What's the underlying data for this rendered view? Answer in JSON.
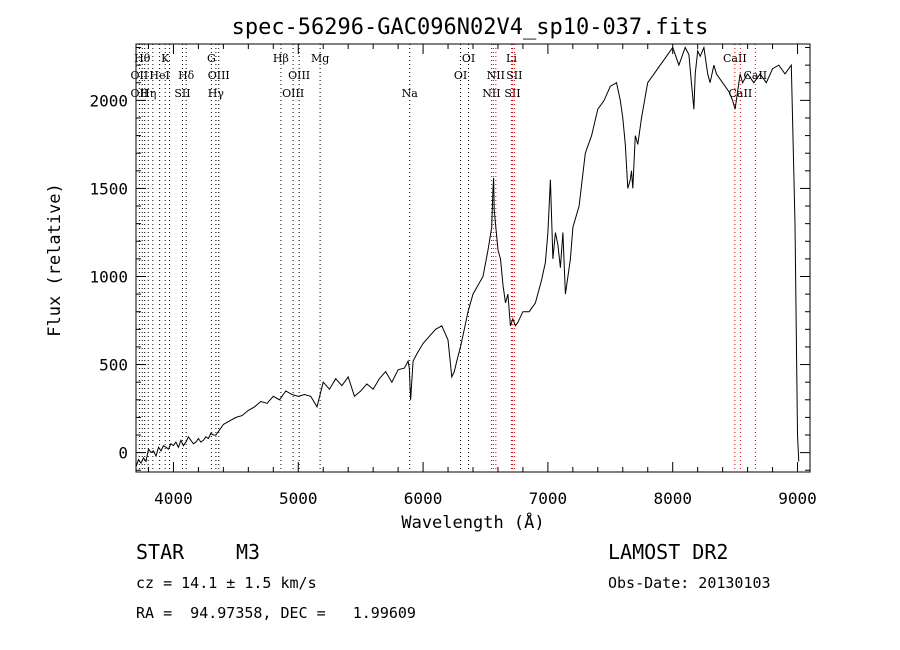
{
  "chart_data": {
    "type": "line",
    "title": "spec-56296-GAC096N02V4_sp10-037.fits",
    "xlabel": "Wavelength (Å)",
    "ylabel": "Flux (relative)",
    "xlim": [
      3700,
      9100
    ],
    "ylim": [
      -110,
      2320
    ],
    "x_ticks": [
      4000,
      5000,
      6000,
      7000,
      8000,
      9000
    ],
    "y_ticks": [
      0,
      500,
      1000,
      1500,
      2000
    ],
    "grid": false,
    "line_color": "#000000",
    "series": [
      {
        "x": [
          3700,
          3720,
          3740,
          3760,
          3780,
          3800,
          3820,
          3840,
          3860,
          3880,
          3900,
          3920,
          3940,
          3960,
          3980,
          4000,
          4020,
          4040,
          4060,
          4080,
          4100,
          4120,
          4140,
          4160,
          4180,
          4200,
          4220,
          4240,
          4260,
          4280,
          4300,
          4320,
          4340,
          4360,
          4380,
          4400,
          4450,
          4500,
          4550,
          4600,
          4650,
          4700,
          4750,
          4800,
          4850,
          4900,
          4950,
          5000,
          5050,
          5100,
          5150,
          5200,
          5250,
          5300,
          5350,
          5400,
          5450,
          5500,
          5550,
          5600,
          5650,
          5700,
          5750,
          5800,
          5850,
          5880,
          5890,
          5900,
          5920,
          5950,
          6000,
          6050,
          6100,
          6150,
          6200,
          6230,
          6250,
          6270,
          6300,
          6330,
          6360,
          6400,
          6440,
          6480,
          6520,
          6550,
          6560,
          6565,
          6570,
          6580,
          6600,
          6620,
          6640,
          6660,
          6680,
          6700,
          6720,
          6740,
          6760,
          6800,
          6850,
          6900,
          6950,
          6980,
          7000,
          7020,
          7040,
          7060,
          7080,
          7100,
          7120,
          7140,
          7160,
          7180,
          7200,
          7250,
          7300,
          7350,
          7400,
          7450,
          7500,
          7550,
          7580,
          7600,
          7620,
          7640,
          7660,
          7670,
          7680,
          7700,
          7720,
          7750,
          7800,
          7850,
          7900,
          7950,
          8000,
          8050,
          8100,
          8130,
          8150,
          8170,
          8180,
          8200,
          8220,
          8250,
          8280,
          8300,
          8330,
          8350,
          8400,
          8450,
          8480,
          8500,
          8520,
          8540,
          8560,
          8600,
          8650,
          8700,
          8750,
          8800,
          8850,
          8900,
          8950,
          8980,
          9000,
          9010
        ],
        "y": [
          -80,
          -40,
          -60,
          -30,
          -50,
          20,
          0,
          10,
          -20,
          30,
          10,
          40,
          30,
          20,
          50,
          40,
          60,
          30,
          70,
          40,
          60,
          90,
          70,
          50,
          60,
          80,
          60,
          70,
          90,
          80,
          110,
          100,
          100,
          120,
          140,
          160,
          180,
          200,
          210,
          240,
          260,
          290,
          280,
          320,
          300,
          350,
          330,
          320,
          330,
          320,
          260,
          400,
          360,
          420,
          380,
          430,
          320,
          350,
          390,
          360,
          420,
          460,
          400,
          470,
          480,
          520,
          480,
          300,
          520,
          560,
          620,
          660,
          700,
          720,
          640,
          430,
          460,
          520,
          600,
          700,
          800,
          900,
          950,
          1000,
          1150,
          1280,
          1500,
          1560,
          1380,
          1300,
          1150,
          1100,
          950,
          850,
          900,
          720,
          760,
          720,
          740,
          800,
          800,
          850,
          980,
          1080,
          1250,
          1550,
          1100,
          1250,
          1180,
          1050,
          1250,
          900,
          1000,
          1100,
          1280,
          1400,
          1700,
          1800,
          1950,
          2000,
          2080,
          2100,
          2000,
          1900,
          1750,
          1500,
          1550,
          1600,
          1500,
          1800,
          1750,
          1900,
          2100,
          2150,
          2200,
          2250,
          2300,
          2200,
          2300,
          2260,
          2100,
          1950,
          2150,
          2280,
          2250,
          2300,
          2150,
          2100,
          2200,
          2150,
          2100,
          2050,
          2000,
          1950,
          2050,
          2150,
          2100,
          2150,
          2100,
          2150,
          2100,
          2180,
          2200,
          2150,
          2200,
          1300,
          100,
          -50
        ]
      }
    ],
    "lines": [
      {
        "x": 3727,
        "color": "#000000",
        "labels": [
          {
            "text": "OII",
            "row": 1
          },
          {
            "text": "OII",
            "row": 2
          }
        ]
      },
      {
        "x": 3750,
        "color": "#000000",
        "labels": [
          {
            "text": "Hθ",
            "row": 0
          }
        ]
      },
      {
        "x": 3770,
        "color": "#000000",
        "labels": []
      },
      {
        "x": 3798,
        "color": "#000000",
        "labels": [
          {
            "text": "Hη",
            "row": 2
          }
        ]
      },
      {
        "x": 3835,
        "color": "#000000",
        "labels": []
      },
      {
        "x": 3889,
        "color": "#000000",
        "labels": [
          {
            "text": "HeI",
            "row": 1
          }
        ]
      },
      {
        "x": 3934,
        "color": "#000000",
        "labels": [
          {
            "text": "K",
            "row": 0
          }
        ]
      },
      {
        "x": 3969,
        "color": "#000000",
        "labels": []
      },
      {
        "x": 4072,
        "color": "#000000",
        "labels": [
          {
            "text": "SII",
            "row": 2
          }
        ]
      },
      {
        "x": 4102,
        "color": "#000000",
        "labels": [
          {
            "text": "Hδ",
            "row": 1
          }
        ]
      },
      {
        "x": 4304,
        "color": "#000000",
        "labels": [
          {
            "text": "G",
            "row": 0
          }
        ]
      },
      {
        "x": 4340,
        "color": "#000000",
        "labels": [
          {
            "text": "Hγ",
            "row": 2
          }
        ]
      },
      {
        "x": 4363,
        "color": "#000000",
        "labels": [
          {
            "text": "OIII",
            "row": 1
          }
        ]
      },
      {
        "x": 4861,
        "color": "#000000",
        "labels": [
          {
            "text": "Hβ",
            "row": 0
          }
        ]
      },
      {
        "x": 4959,
        "color": "#000000",
        "labels": [
          {
            "text": "OIII",
            "row": 2
          }
        ]
      },
      {
        "x": 5007,
        "color": "#000000",
        "labels": [
          {
            "text": "OIII",
            "row": 1
          }
        ]
      },
      {
        "x": 5175,
        "color": "#000000",
        "labels": [
          {
            "text": "Mg",
            "row": 0
          }
        ]
      },
      {
        "x": 5893,
        "color": "#000000",
        "labels": [
          {
            "text": "Na",
            "row": 2
          }
        ]
      },
      {
        "x": 6300,
        "color": "#000000",
        "labels": [
          {
            "text": "OI",
            "row": 1
          }
        ]
      },
      {
        "x": 6364,
        "color": "#000000",
        "labels": [
          {
            "text": "OI",
            "row": 0
          }
        ]
      },
      {
        "x": 6548,
        "color": "#c00000",
        "labels": [
          {
            "text": "NII",
            "row": 2
          }
        ]
      },
      {
        "x": 6563,
        "color": "#c00000",
        "labels": []
      },
      {
        "x": 6583,
        "color": "#c00000",
        "labels": [
          {
            "text": "NII",
            "row": 1
          }
        ]
      },
      {
        "x": 6708,
        "color": "#c00000",
        "labels": [
          {
            "text": "Li",
            "row": 0
          }
        ]
      },
      {
        "x": 6716,
        "color": "#c00000",
        "labels": [
          {
            "text": "SII",
            "row": 2
          }
        ]
      },
      {
        "x": 6731,
        "color": "#c00000",
        "labels": [
          {
            "text": "SII",
            "row": 1
          }
        ]
      },
      {
        "x": 8498,
        "color": "#c00000",
        "labels": [
          {
            "text": "CaII",
            "row": 0
          }
        ]
      },
      {
        "x": 8542,
        "color": "#c00000",
        "labels": [
          {
            "text": "CaII",
            "row": 2
          }
        ]
      },
      {
        "x": 8662,
        "color": "#c00000",
        "labels": [
          {
            "text": "CaII",
            "row": 1
          }
        ]
      }
    ]
  },
  "info": {
    "object_class": "STAR",
    "subclass": "M3",
    "survey": "LAMOST DR2",
    "cz": "cz = 14.1 ± 1.5 km/s",
    "obs_date": "Obs-Date: 20130103",
    "coords": "RA =  94.97358, DEC =   1.99609"
  }
}
